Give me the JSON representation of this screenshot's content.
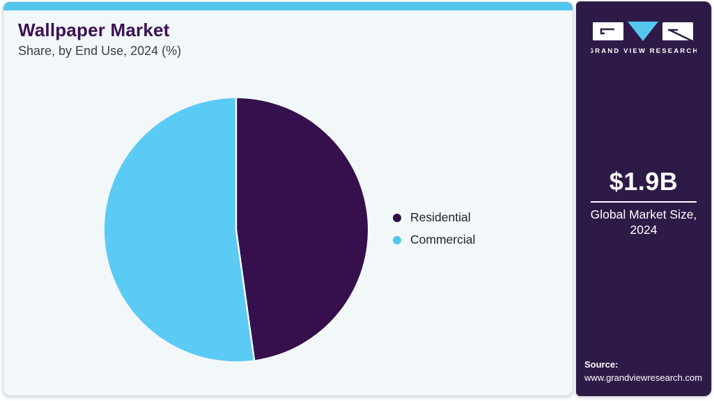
{
  "header": {
    "title": "Wallpaper Market",
    "subtitle": "Share, by End Use, 2024 (%)"
  },
  "chart_data": {
    "type": "pie",
    "title": "Wallpaper Market Share, by End Use, 2024 (%)",
    "unit": "percent",
    "start_angle_deg": 0,
    "direction": "clockwise",
    "legend_position": "right",
    "slices": [
      {
        "label": "Residential",
        "value": 47.8,
        "color": "#35104d"
      },
      {
        "label": "Commercial",
        "value": 52.2,
        "color": "#5bcaf5"
      }
    ],
    "legend_dot_colors": {
      "Residential": "#2d0f45",
      "Commercial": "#4fc8f0"
    },
    "divider_color": "#ffffff"
  },
  "sidebar": {
    "logo": {
      "brand": "GRAND VIEW RESEARCH"
    },
    "market_size": {
      "value": "$1.9B",
      "caption_line1": "Global Market Size,",
      "caption_line2": "2024"
    },
    "source": {
      "label": "Source:",
      "url": "www.grandviewresearch.com"
    }
  },
  "colors": {
    "top_bar": "#55c6ed",
    "card_bg": "#f2f7fa",
    "sidebar_bg": "#2e1a47",
    "title": "#3b1053",
    "subtitle": "#3c3c44",
    "legend_text": "#22222e"
  }
}
